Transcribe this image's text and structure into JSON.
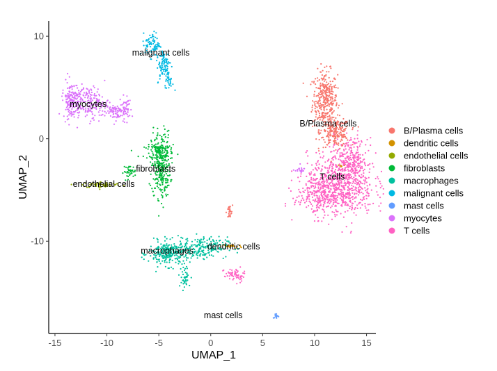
{
  "chart_data": {
    "type": "scatter",
    "xlabel": "UMAP_1",
    "ylabel": "UMAP_2",
    "xlim": [
      -15.6,
      15.9
    ],
    "ylim": [
      -19,
      11.5
    ],
    "x_ticks": [
      -15,
      -10,
      -5,
      0,
      5,
      10,
      15
    ],
    "y_ticks": [
      -10,
      0,
      10
    ],
    "x_tick_labels": [
      "-15",
      "-10",
      "-5",
      "0",
      "5",
      "10",
      "15"
    ],
    "y_tick_labels": [
      "-10",
      "0",
      "10"
    ],
    "grid": false,
    "legend_position": "right",
    "series": [
      {
        "name": "B/Plasma cells",
        "color": "#F8766D",
        "regions": [
          {
            "cx": 11.0,
            "cy": 3.8,
            "sx": 0.6,
            "sy": 1.4,
            "n": 350
          },
          {
            "cx": 12.0,
            "cy": 0.6,
            "sx": 0.7,
            "sy": 0.7,
            "n": 220
          },
          {
            "cx": 1.8,
            "cy": -7.2,
            "sx": 0.15,
            "sy": 0.35,
            "n": 25
          }
        ],
        "label": {
          "text": "B/Plasma cells",
          "x": 11.3,
          "y": 1.2
        }
      },
      {
        "name": "dendritic cells",
        "color": "#D39200",
        "regions": [
          {
            "cx": 2.0,
            "cy": -10.5,
            "sx": 0.5,
            "sy": 0.12,
            "n": 25
          },
          {
            "cx": 12.5,
            "cy": -2.6,
            "sx": 0.2,
            "sy": 0.2,
            "n": 6
          }
        ],
        "label": {
          "text": "dendritic cells",
          "x": 2.2,
          "y": -10.8
        }
      },
      {
        "name": "endothelial cells",
        "color": "#93AA00",
        "regions": [
          {
            "cx": -10.5,
            "cy": -4.5,
            "sx": 1.0,
            "sy": 0.15,
            "n": 60
          }
        ],
        "label": {
          "text": "endothelial cells",
          "x": -10.3,
          "y": -4.7
        }
      },
      {
        "name": "fibroblasts",
        "color": "#00BA38",
        "regions": [
          {
            "cx": -4.8,
            "cy": -2.5,
            "sx": 0.45,
            "sy": 1.6,
            "n": 330
          },
          {
            "cx": -7.8,
            "cy": -3.2,
            "sx": 0.3,
            "sy": 0.3,
            "n": 40
          },
          {
            "cx": -5.0,
            "cy": -1.2,
            "sx": 0.7,
            "sy": 0.3,
            "n": 60
          }
        ],
        "label": {
          "text": "fibroblasts",
          "x": -5.3,
          "y": -3.2
        }
      },
      {
        "name": "macrophages",
        "color": "#00C19F",
        "regions": [
          {
            "cx": -4.0,
            "cy": -11.2,
            "sx": 1.0,
            "sy": 0.6,
            "n": 260
          },
          {
            "cx": -0.8,
            "cy": -10.6,
            "sx": 1.2,
            "sy": 0.5,
            "n": 200
          },
          {
            "cx": -2.5,
            "cy": -13.5,
            "sx": 0.3,
            "sy": 0.6,
            "n": 40
          }
        ],
        "label": {
          "text": "macrophages",
          "x": -4.2,
          "y": -11.2
        }
      },
      {
        "name": "malignant cells",
        "color": "#00B9E3",
        "regions": [
          {
            "cx": -5.6,
            "cy": 9.2,
            "sx": 0.35,
            "sy": 0.6,
            "n": 80
          },
          {
            "cx": -4.5,
            "cy": 7.2,
            "sx": 0.35,
            "sy": 0.8,
            "n": 90
          },
          {
            "cx": -4.0,
            "cy": 5.6,
            "sx": 0.2,
            "sy": 0.4,
            "n": 25
          }
        ],
        "label": {
          "text": "malignant cells",
          "x": -4.8,
          "y": 8.1
        }
      },
      {
        "name": "mast cells",
        "color": "#619CFF",
        "regions": [
          {
            "cx": 6.3,
            "cy": -17.3,
            "sx": 0.15,
            "sy": 0.12,
            "n": 15
          }
        ],
        "label": {
          "text": "mast cells",
          "x": 1.2,
          "y": -17.5
        }
      },
      {
        "name": "myocytes",
        "color": "#DB72FB",
        "regions": [
          {
            "cx": -13.4,
            "cy": 3.8,
            "sx": 0.4,
            "sy": 0.9,
            "n": 140
          },
          {
            "cx": -11.8,
            "cy": 3.5,
            "sx": 1.0,
            "sy": 0.8,
            "n": 200
          },
          {
            "cx": -9.2,
            "cy": 2.6,
            "sx": 0.5,
            "sy": 0.4,
            "n": 70
          },
          {
            "cx": -8.2,
            "cy": 3.0,
            "sx": 0.3,
            "sy": 0.6,
            "n": 40
          },
          {
            "cx": 8.5,
            "cy": -3.0,
            "sx": 0.3,
            "sy": 0.15,
            "n": 20
          }
        ],
        "label": {
          "text": "myocytes",
          "x": -11.8,
          "y": 3.1
        }
      },
      {
        "name": "T cells",
        "color": "#FF61C3",
        "regions": [
          {
            "cx": 12.5,
            "cy": -4.5,
            "sx": 1.6,
            "sy": 1.5,
            "n": 700
          },
          {
            "cx": 13.5,
            "cy": -2.0,
            "sx": 0.8,
            "sy": 1.0,
            "n": 220
          },
          {
            "cx": 10.5,
            "cy": -5.5,
            "sx": 1.2,
            "sy": 0.9,
            "n": 200
          },
          {
            "cx": 2.3,
            "cy": -13.3,
            "sx": 0.5,
            "sy": 0.35,
            "n": 60
          }
        ],
        "label": {
          "text": "T cells",
          "x": 11.7,
          "y": -4.0
        }
      }
    ]
  }
}
